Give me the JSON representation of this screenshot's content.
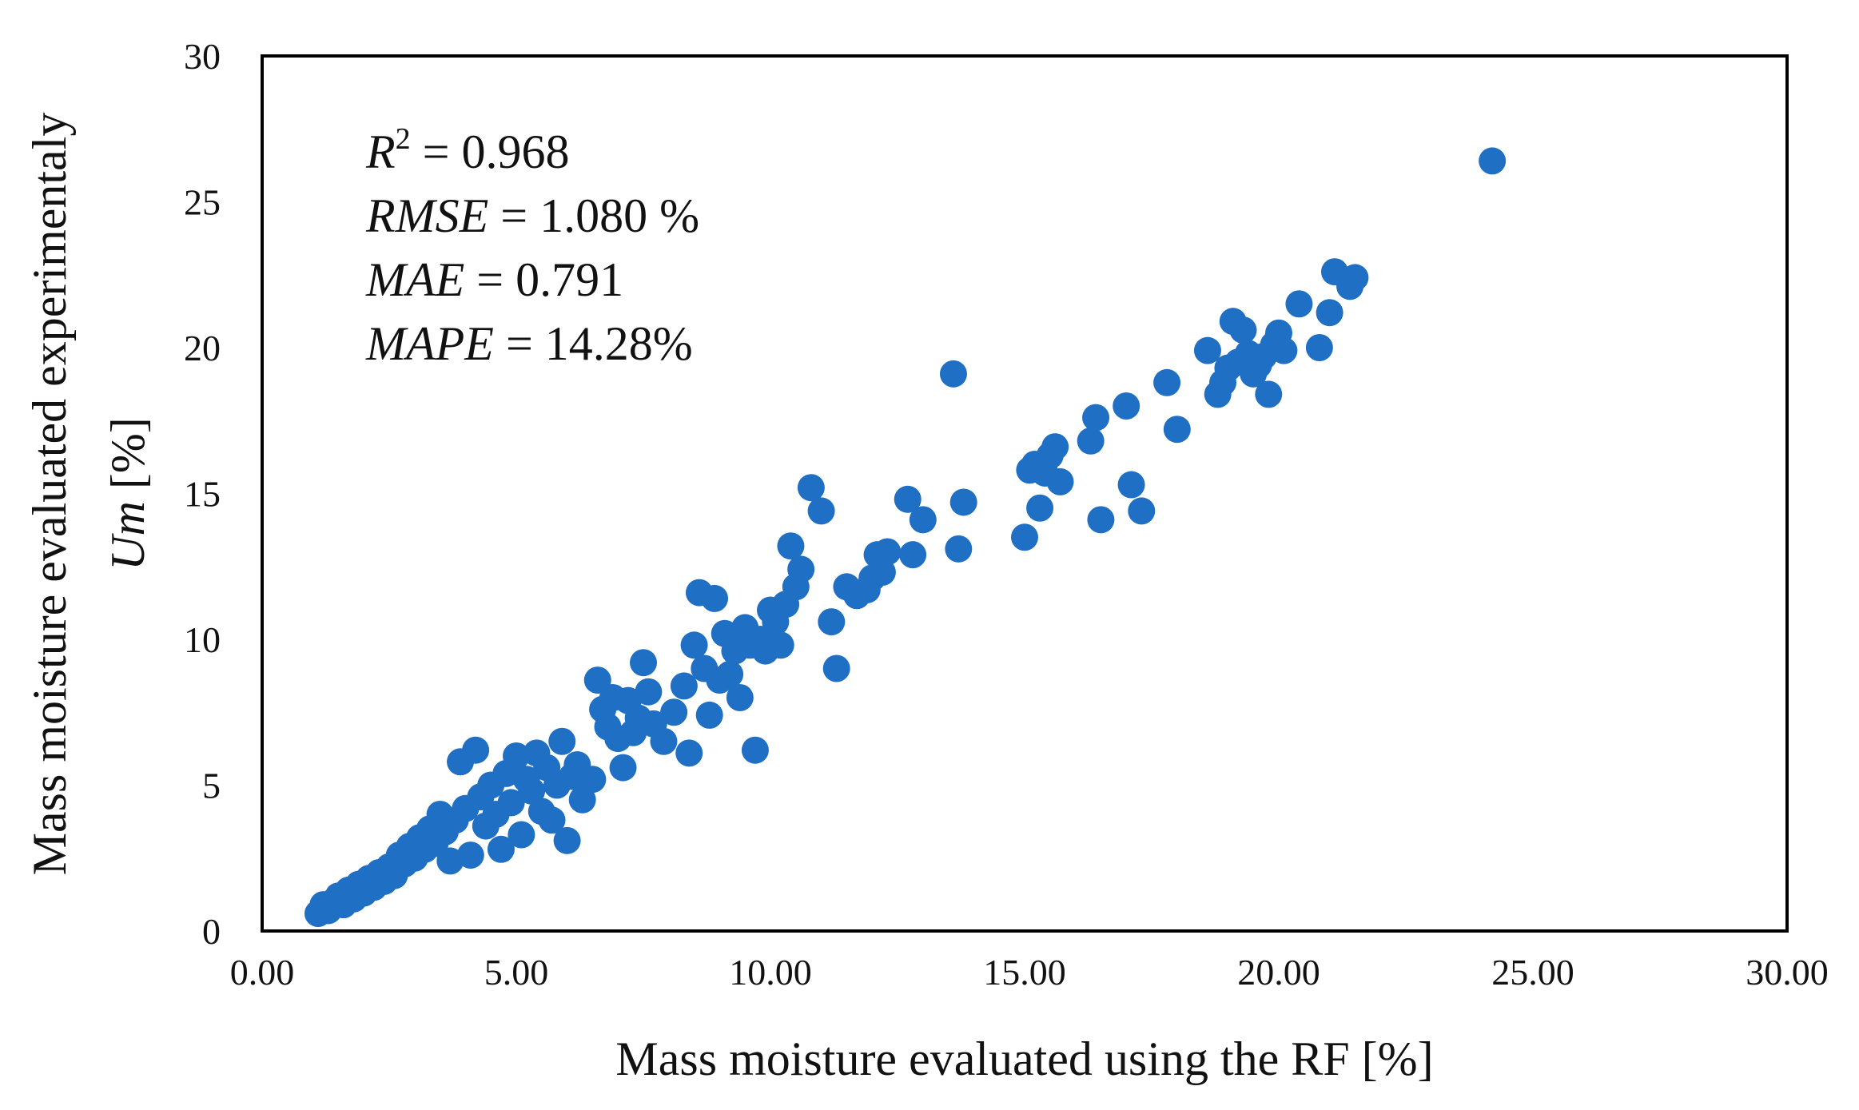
{
  "chart_data": {
    "type": "scatter",
    "title": "",
    "xlabel": "Mass moisture evaluated using the RF [%]",
    "ylabel_line1": "Mass moisture evaluated experimentaly",
    "ylabel_line2_var": "Um",
    "ylabel_line2_unit": " [%]",
    "xlim": [
      0,
      30
    ],
    "ylim": [
      0,
      30
    ],
    "x_ticks": [
      "0.00",
      "5.00",
      "10.00",
      "15.00",
      "20.00",
      "25.00",
      "30.00"
    ],
    "y_ticks": [
      "0",
      "5",
      "10",
      "15",
      "20",
      "25",
      "30"
    ],
    "grid": false,
    "legend": "none",
    "marker_color": "#1F6FC5",
    "annotations": {
      "r2_var": "R",
      "r2_sup": "2",
      "r2_value": " = 0.968",
      "rmse_var": "RMSE",
      "rmse_value": " = 1.080 %",
      "mae_var": "MAE",
      "mae_value": " = 0.791",
      "mape_var": "MAPE",
      "mape_value": " = 14.28%"
    },
    "points": [
      [
        1.1,
        0.6
      ],
      [
        1.2,
        0.9
      ],
      [
        1.3,
        0.7
      ],
      [
        1.4,
        1.0
      ],
      [
        1.5,
        1.2
      ],
      [
        1.6,
        0.9
      ],
      [
        1.7,
        1.4
      ],
      [
        1.8,
        1.1
      ],
      [
        1.9,
        1.6
      ],
      [
        2.0,
        1.3
      ],
      [
        2.1,
        1.8
      ],
      [
        2.2,
        1.5
      ],
      [
        2.3,
        2.0
      ],
      [
        2.4,
        1.7
      ],
      [
        2.5,
        2.2
      ],
      [
        2.6,
        1.9
      ],
      [
        2.7,
        2.6
      ],
      [
        2.8,
        2.3
      ],
      [
        2.9,
        2.9
      ],
      [
        3.0,
        2.5
      ],
      [
        3.1,
        3.2
      ],
      [
        3.2,
        2.8
      ],
      [
        3.3,
        3.5
      ],
      [
        3.4,
        3.0
      ],
      [
        3.5,
        4.0
      ],
      [
        3.6,
        3.4
      ],
      [
        3.7,
        2.4
      ],
      [
        3.8,
        3.8
      ],
      [
        3.9,
        5.8
      ],
      [
        4.0,
        4.2
      ],
      [
        4.1,
        2.6
      ],
      [
        4.2,
        6.2
      ],
      [
        4.3,
        4.6
      ],
      [
        4.4,
        3.6
      ],
      [
        4.5,
        5.0
      ],
      [
        4.6,
        4.0
      ],
      [
        4.7,
        2.8
      ],
      [
        4.8,
        5.4
      ],
      [
        4.9,
        4.4
      ],
      [
        5.0,
        6.0
      ],
      [
        5.1,
        3.3
      ],
      [
        5.2,
        5.2
      ],
      [
        5.3,
        4.8
      ],
      [
        5.4,
        6.1
      ],
      [
        5.5,
        4.1
      ],
      [
        5.6,
        5.6
      ],
      [
        5.7,
        3.8
      ],
      [
        5.8,
        5.0
      ],
      [
        5.9,
        6.5
      ],
      [
        6.0,
        3.1
      ],
      [
        6.1,
        5.3
      ],
      [
        6.2,
        5.7
      ],
      [
        6.3,
        4.5
      ],
      [
        6.5,
        5.2
      ],
      [
        6.6,
        8.6
      ],
      [
        6.7,
        7.6
      ],
      [
        6.8,
        7.0
      ],
      [
        6.9,
        8.0
      ],
      [
        7.0,
        6.6
      ],
      [
        7.1,
        5.6
      ],
      [
        7.2,
        7.9
      ],
      [
        7.3,
        6.8
      ],
      [
        7.4,
        7.3
      ],
      [
        7.5,
        9.2
      ],
      [
        7.6,
        8.2
      ],
      [
        7.7,
        7.1
      ],
      [
        7.9,
        6.5
      ],
      [
        8.1,
        7.5
      ],
      [
        8.3,
        8.4
      ],
      [
        8.4,
        6.1
      ],
      [
        8.5,
        9.8
      ],
      [
        8.6,
        11.6
      ],
      [
        8.7,
        9.0
      ],
      [
        8.8,
        7.4
      ],
      [
        8.9,
        11.4
      ],
      [
        9.0,
        8.6
      ],
      [
        9.1,
        10.2
      ],
      [
        9.2,
        8.8
      ],
      [
        9.3,
        9.6
      ],
      [
        9.4,
        8.0
      ],
      [
        9.5,
        10.4
      ],
      [
        9.6,
        9.8
      ],
      [
        9.7,
        6.2
      ],
      [
        9.8,
        10.0
      ],
      [
        9.9,
        9.6
      ],
      [
        10.0,
        11.0
      ],
      [
        10.1,
        10.6
      ],
      [
        10.2,
        9.8
      ],
      [
        10.3,
        11.2
      ],
      [
        10.4,
        13.2
      ],
      [
        10.5,
        11.8
      ],
      [
        10.6,
        12.4
      ],
      [
        10.8,
        15.2
      ],
      [
        11.0,
        14.4
      ],
      [
        11.2,
        10.6
      ],
      [
        11.3,
        9.0
      ],
      [
        11.5,
        11.8
      ],
      [
        11.7,
        11.5
      ],
      [
        11.9,
        11.7
      ],
      [
        12.0,
        12.1
      ],
      [
        12.1,
        12.9
      ],
      [
        12.2,
        12.3
      ],
      [
        12.3,
        13.0
      ],
      [
        12.7,
        14.8
      ],
      [
        12.8,
        12.9
      ],
      [
        13.0,
        14.1
      ],
      [
        13.6,
        19.1
      ],
      [
        13.7,
        13.1
      ],
      [
        13.8,
        14.7
      ],
      [
        15.0,
        13.5
      ],
      [
        15.1,
        15.8
      ],
      [
        15.2,
        16.0
      ],
      [
        15.3,
        14.5
      ],
      [
        15.4,
        15.7
      ],
      [
        15.5,
        16.3
      ],
      [
        15.6,
        16.6
      ],
      [
        15.7,
        15.4
      ],
      [
        16.3,
        16.8
      ],
      [
        16.4,
        17.6
      ],
      [
        16.5,
        14.1
      ],
      [
        17.0,
        18.0
      ],
      [
        17.1,
        15.3
      ],
      [
        17.3,
        14.4
      ],
      [
        17.8,
        18.8
      ],
      [
        18.0,
        17.2
      ],
      [
        18.6,
        19.9
      ],
      [
        18.8,
        18.4
      ],
      [
        18.9,
        18.8
      ],
      [
        19.0,
        19.3
      ],
      [
        19.1,
        20.9
      ],
      [
        19.2,
        19.5
      ],
      [
        19.3,
        20.6
      ],
      [
        19.4,
        19.8
      ],
      [
        19.5,
        19.1
      ],
      [
        19.6,
        19.4
      ],
      [
        19.7,
        19.7
      ],
      [
        19.8,
        18.4
      ],
      [
        19.9,
        20.1
      ],
      [
        20.0,
        20.5
      ],
      [
        20.1,
        19.9
      ],
      [
        20.4,
        21.5
      ],
      [
        20.8,
        20.0
      ],
      [
        21.0,
        21.2
      ],
      [
        21.1,
        22.6
      ],
      [
        21.4,
        22.1
      ],
      [
        21.5,
        22.4
      ],
      [
        24.2,
        26.4
      ]
    ]
  }
}
